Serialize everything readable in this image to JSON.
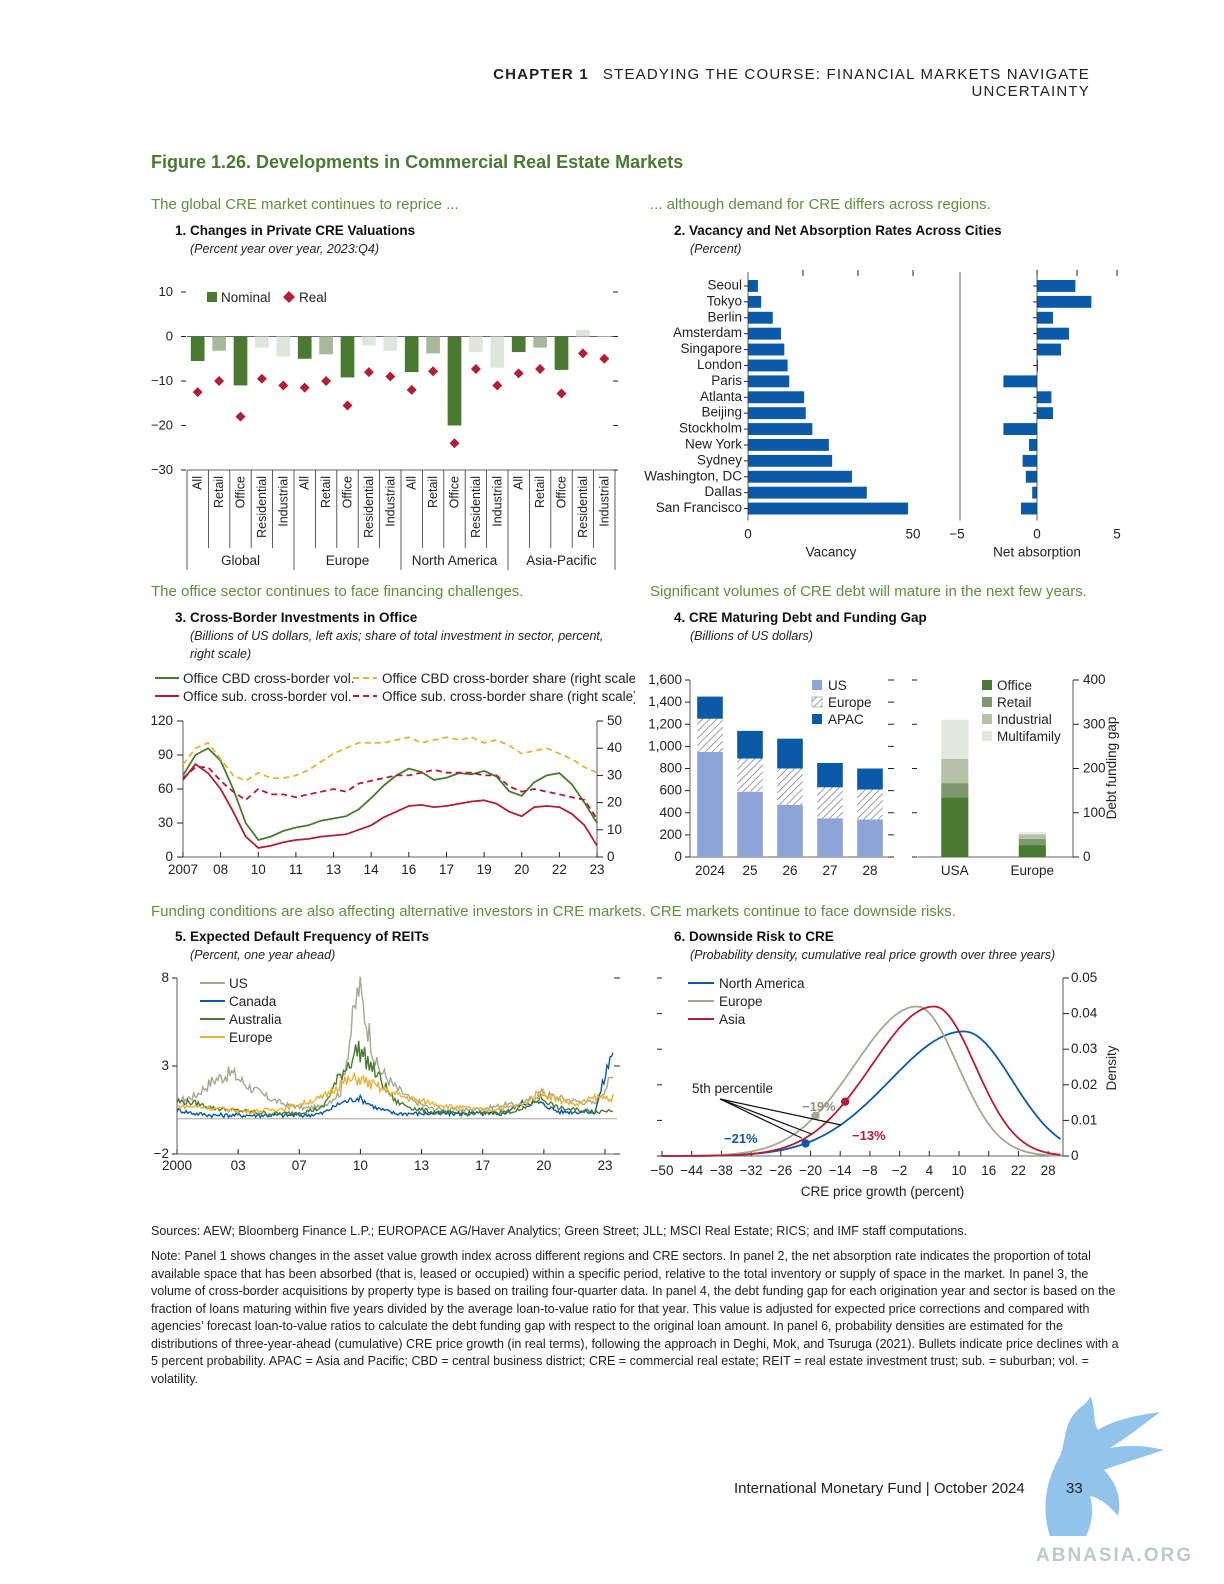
{
  "header": {
    "chapter": "CHAPTER 1",
    "title": "STEADYING THE COURSE: FINANCIAL MARKETS NAVIGATE UNCERTAINTY"
  },
  "figure_title": "Figure 1.26. Developments in Commercial Real Estate Markets",
  "panels": {
    "p1": {
      "lede": "The global CRE market continues to reprice ...",
      "title": "1. Changes in Private CRE Valuations",
      "subtitle": "(Percent year over year, 2023:Q4)"
    },
    "p2": {
      "lede": "... although demand for CRE differs across regions.",
      "title": "2. Vacancy and Net Absorption Rates Across Cities",
      "subtitle": "(Percent)"
    },
    "p3": {
      "lede": "The office sector continues to face financing challenges.",
      "title": "3. Cross-Border Investments in Office",
      "subtitle1": "(Billions of US dollars, left axis; share of total investment in sector, percent,",
      "subtitle2": "right scale)"
    },
    "p4": {
      "lede": "Significant volumes of CRE debt will mature in the next few years.",
      "title": "4. CRE Maturing Debt and Funding Gap",
      "subtitle": "(Billions of US dollars)"
    },
    "p5": {
      "lede": "Funding conditions are also affecting alternative investors in CRE markets.",
      "title": "5. Expected Default Frequency of REITs",
      "subtitle": "(Percent, one year ahead)"
    },
    "p6": {
      "lede": "CRE markets continue to face downside risks.",
      "title": "6. Downside Risk to CRE",
      "subtitle": "(Probability density, cumulative real price growth over three years)"
    }
  },
  "colors": {
    "nominal": "#4a7a31",
    "nominal_light": "#a8b89a",
    "nominal_pale": "#dfe5da",
    "real": "#b01e38",
    "blue": "#0b5aa7",
    "light_blue": "#8da5d6",
    "green_dark": "#4a7a31",
    "green_mid": "#7e9a6c",
    "green_light": "#b5c2a8",
    "green_pale": "#e3e7de",
    "gold": "#e8b23a",
    "grey_green": "#a6a88f",
    "accent": "#5f8f3f"
  },
  "chart_data": [
    {
      "type": "bar",
      "title": "1. Changes in Private CRE Valuations",
      "ylim": [
        -30,
        10
      ],
      "yticks": [
        10,
        0,
        -10,
        -20,
        -30
      ],
      "legend": [
        "Nominal",
        "Real"
      ],
      "groups": [
        "Global",
        "Europe",
        "North America",
        "Asia-Pacific"
      ],
      "categories": [
        "All",
        "Retail",
        "Office",
        "Residential",
        "Industrial",
        "All",
        "Retail",
        "Office",
        "Residential",
        "Industrial",
        "All",
        "Retail",
        "Office",
        "Residential",
        "Industrial",
        "All",
        "Retail",
        "Office",
        "Residential",
        "Industrial"
      ],
      "series": [
        {
          "name": "Nominal",
          "values": [
            -5.5,
            -3.2,
            -11,
            -2.5,
            -4.5,
            -5,
            -4,
            -9.2,
            -2,
            -3.2,
            -8,
            -3.8,
            -20,
            -3.5,
            -7,
            -3.5,
            -2.5,
            -7.5,
            1.5,
            0
          ]
        },
        {
          "name": "Real",
          "values": [
            -12.5,
            -10,
            -18,
            -9.5,
            -11,
            -11.5,
            -10,
            -15.5,
            -8,
            -9,
            -12,
            -7.8,
            -24,
            -7.3,
            -11,
            -8.3,
            -7.3,
            -12.8,
            -3.8,
            -5
          ]
        }
      ]
    },
    {
      "type": "bar",
      "title": "2. Vacancy and Net Absorption Rates Across Cities",
      "categories": [
        "Seoul",
        "Tokyo",
        "Berlin",
        "Amsterdam",
        "Singapore",
        "London",
        "Paris",
        "Atlanta",
        "Beijing",
        "Stockholm",
        "New York",
        "Sydney",
        "Washington, DC",
        "Dallas",
        "San Francisco"
      ],
      "xlabel_left": "Vacancy",
      "xlabel_right": "Net absorption",
      "xlim_left": [
        0,
        50
      ],
      "xlim_right": [
        -5,
        5
      ],
      "xticks_left": [
        "0",
        "50"
      ],
      "xticks_right": [
        "−5",
        "0",
        "5"
      ],
      "series": [
        {
          "name": "Vacancy",
          "values": [
            3,
            4,
            7.5,
            10,
            11,
            12,
            12.5,
            17,
            17.5,
            19.5,
            24.5,
            25.5,
            31.5,
            36,
            48.5
          ]
        },
        {
          "name": "Net absorption",
          "values": [
            2.4,
            3.4,
            1,
            2,
            1.5,
            0,
            -2.1,
            0.9,
            1,
            -2.1,
            -0.5,
            -0.9,
            -0.7,
            -0.3,
            -1
          ]
        }
      ]
    },
    {
      "type": "line",
      "title": "3. Cross-Border Investments in Office",
      "x_start": 2007,
      "x_end": 2024,
      "xticks": [
        "2007",
        "08",
        "10",
        "11",
        "13",
        "14",
        "16",
        "17",
        "19",
        "20",
        "22",
        "23"
      ],
      "ylim_left": [
        0,
        120
      ],
      "yticks_left": [
        "0",
        "30",
        "60",
        "90",
        "120"
      ],
      "ylim_right": [
        0,
        50
      ],
      "yticks_right": [
        "0",
        "10",
        "20",
        "30",
        "40",
        "50"
      ],
      "series": [
        {
          "name": "Office CBD cross-border vol.",
          "axis": "left",
          "values": [
            72,
            90,
            96,
            85,
            60,
            30,
            15,
            18,
            23,
            26,
            28,
            32,
            34,
            36,
            42,
            52,
            63,
            72,
            78,
            75,
            68,
            70,
            74,
            73,
            76,
            71,
            58,
            54,
            66,
            72,
            74,
            64,
            48,
            30
          ]
        },
        {
          "name": "Office sub. cross-border vol.",
          "axis": "left",
          "values": [
            68,
            82,
            74,
            60,
            40,
            18,
            8,
            10,
            13,
            15,
            16,
            18,
            19,
            20,
            24,
            28,
            35,
            40,
            45,
            46,
            44,
            45,
            47,
            49,
            50,
            47,
            40,
            36,
            44,
            45,
            44,
            38,
            28,
            10
          ]
        },
        {
          "name": "Office CBD cross-border share (right scale)",
          "axis": "right",
          "values": [
            34,
            40,
            42,
            36,
            30,
            28,
            31,
            29,
            29,
            30,
            32,
            35,
            38,
            40,
            42,
            42,
            42,
            43,
            44,
            42,
            43,
            44,
            43,
            44,
            42,
            43,
            41,
            38,
            39,
            40,
            38,
            36,
            33,
            31
          ]
        },
        {
          "name": "Office sub. cross-border share (right scale)",
          "axis": "right",
          "values": [
            29,
            33,
            33,
            28,
            24,
            21,
            25,
            23,
            23,
            22,
            23,
            24,
            25,
            24,
            27,
            28,
            29,
            30,
            30,
            31,
            32,
            31,
            31,
            31,
            30,
            30,
            26,
            24,
            25,
            24,
            23,
            22,
            21,
            14
          ]
        }
      ]
    },
    {
      "type": "bar",
      "title": "4. CRE Maturing Debt and Funding Gap",
      "left": {
        "categories": [
          "2024",
          "25",
          "26",
          "27",
          "28"
        ],
        "ylim": [
          0,
          1600
        ],
        "yticks": [
          "0",
          "200",
          "400",
          "600",
          "800",
          "1,000",
          "1,200",
          "1,400",
          "1,600"
        ],
        "series": [
          {
            "name": "US",
            "values": [
              950,
              590,
              470,
              350,
              340
            ]
          },
          {
            "name": "Europe",
            "values": [
              300,
              300,
              330,
              280,
              270
            ]
          },
          {
            "name": "APAC",
            "values": [
              200,
              250,
              270,
              220,
              190
            ]
          }
        ]
      },
      "right": {
        "categories": [
          "USA",
          "Europe"
        ],
        "ylim": [
          0,
          400
        ],
        "yticks": [
          "0",
          "100",
          "200",
          "300",
          "400"
        ],
        "ylabel": "Debt funding gap",
        "series": [
          {
            "name": "Office",
            "values": [
              135,
              27
            ]
          },
          {
            "name": "Retail",
            "values": [
              32,
              14
            ]
          },
          {
            "name": "Industrial",
            "values": [
              55,
              10
            ]
          },
          {
            "name": "Multifamily",
            "values": [
              88,
              5
            ]
          }
        ]
      }
    },
    {
      "type": "line",
      "title": "5. Expected Default Frequency of REITs",
      "x_start": 2000,
      "x_end": 2024.2,
      "xticks": [
        "2000",
        "03",
        "07",
        "10",
        "13",
        "17",
        "20",
        "23"
      ],
      "ylim": [
        -2,
        8
      ],
      "yticks": [
        "−2",
        "3",
        "8"
      ],
      "series": [
        {
          "name": "US",
          "values": [
            1.0,
            1.3,
            2.2,
            2.6,
            1.8,
            1.2,
            0.8,
            0.6,
            0.7,
            1.5,
            7.5,
            3.0,
            1.8,
            1.0,
            0.6,
            0.5,
            0.5,
            0.6,
            0.8,
            0.8,
            1.5,
            1.2,
            1.0,
            0.9,
            2.4
          ]
        },
        {
          "name": "Canada",
          "values": [
            0.5,
            0.3,
            0.2,
            0.2,
            0.2,
            0.2,
            0.2,
            0.2,
            0.3,
            0.9,
            1.2,
            0.6,
            0.3,
            0.3,
            0.3,
            0.3,
            0.3,
            0.3,
            0.3,
            0.9,
            0.9,
            0.4,
            0.4,
            0.4,
            4.0
          ]
        },
        {
          "name": "Australia",
          "values": [
            1.0,
            0.9,
            0.6,
            0.5,
            0.4,
            0.3,
            0.3,
            0.4,
            0.6,
            2.5,
            4.0,
            2.5,
            1.0,
            0.6,
            0.4,
            0.3,
            0.3,
            0.3,
            0.4,
            0.5,
            1.2,
            0.6,
            0.5,
            0.4,
            0.5
          ]
        },
        {
          "name": "Europe",
          "values": [
            0.7,
            0.7,
            0.6,
            0.5,
            0.4,
            0.5,
            0.6,
            0.9,
            1.2,
            2.0,
            2.3,
            1.8,
            1.4,
            1.1,
            0.9,
            0.7,
            0.6,
            0.5,
            0.6,
            0.8,
            1.5,
            1.1,
            0.8,
            1.2,
            1.2
          ]
        }
      ]
    },
    {
      "type": "line",
      "title": "6. Downside Risk to CRE",
      "xlabel": "CRE price growth (percent)",
      "ylabel": "Density",
      "xlim": [
        -50,
        31
      ],
      "xticks": [
        "−50",
        "−44",
        "−38",
        "−32",
        "−26",
        "−20",
        "−14",
        "−8",
        "−2",
        "4",
        "10",
        "16",
        "22",
        "28"
      ],
      "ylim": [
        0,
        0.05
      ],
      "yticks": [
        "0",
        "0.01",
        "0.02",
        "0.03",
        "0.04",
        "0.05"
      ],
      "series": [
        {
          "name": "North America",
          "mean": 11,
          "sd": 13,
          "peak": 0.035,
          "p5": -21
        },
        {
          "name": "Europe",
          "mean": 1.5,
          "sd": 11,
          "peak": 0.042,
          "p5": -19
        },
        {
          "name": "Asia",
          "mean": 5,
          "sd": 11,
          "peak": 0.042,
          "p5": -13
        }
      ],
      "annotations": {
        "percentile_label": "5th percentile",
        "labels": [
          "−21%",
          "−19%",
          "−13%"
        ]
      }
    }
  ],
  "sources": "Sources: AEW; Bloomberg Finance L.P.; EUROPACE AG/Haver Analytics; Green Street; JLL; MSCI Real Estate; RICS; and IMF staff computations.",
  "note": "Note: Panel 1 shows changes in the asset value growth index across different regions and CRE sectors. In panel 2, the net absorption rate indicates the proportion of total available space that has been absorbed (that is, leased or occupied) within a specific period, relative to the total inventory or supply of space in the market. In panel 3, the volume of cross-border acquisitions by property type is based on trailing four-quarter data. In panel 4, the debt funding gap for each origination year and sector is based on the fraction of loans maturing within five years divided by the average loan-to-value ratio for that year. This value is adjusted for expected price corrections and compared with agencies’ forecast loan-to-value ratios to calculate the debt funding gap with respect to the original loan amount. In panel 6, probability densities are estimated for the distributions of three-year-ahead (cumulative) CRE price growth (in real terms), following the approach in Deghi, Mok, and Tsuruga (2021). Bullets indicate price declines with a 5 percent probability. APAC = Asia and Pacific; CBD = central business district; CRE = commercial real estate; REIT = real estate investment trust; sub. = suburban; vol. = volatility.",
  "footer": {
    "publisher": "International Monetary Fund | October 2024",
    "page": "33",
    "watermark": "ABNASIA.ORG"
  }
}
